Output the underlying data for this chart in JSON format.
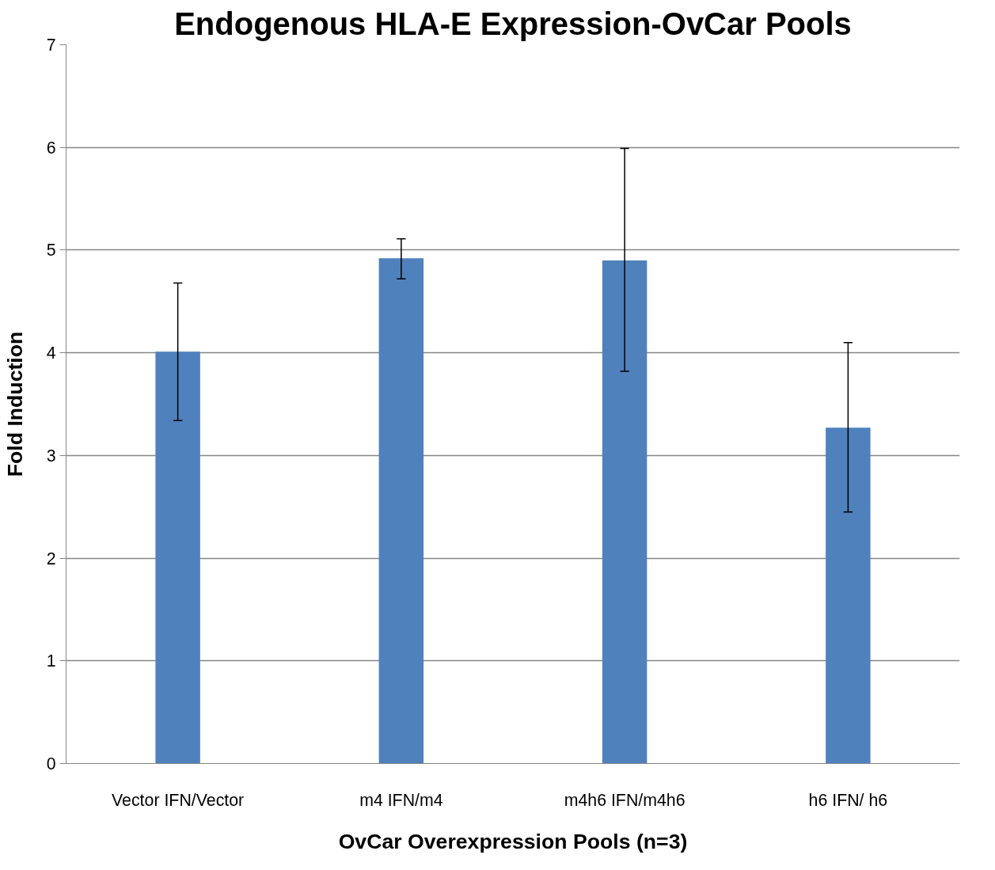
{
  "chart_data": {
    "type": "bar",
    "title": "Endogenous HLA-E Expression-OvCar Pools",
    "xlabel": "OvCar Overexpression Pools (n=3)",
    "ylabel": "Fold Induction",
    "categories": [
      "Vector IFN/Vector",
      "m4 IFN/m4",
      "m4h6 IFN/m4h6",
      "h6 IFN/ h6"
    ],
    "values": [
      4.01,
      4.92,
      4.9,
      3.27
    ],
    "color": "#4f81bd",
    "errors": [
      [
        3.34,
        4.68
      ],
      [
        4.72,
        5.11
      ],
      [
        3.82,
        5.99
      ],
      [
        2.45,
        4.1
      ]
    ],
    "ylim": [
      0,
      7
    ],
    "yticks": [
      0,
      1,
      2,
      3,
      4,
      5,
      6,
      7
    ],
    "grid": "y"
  }
}
